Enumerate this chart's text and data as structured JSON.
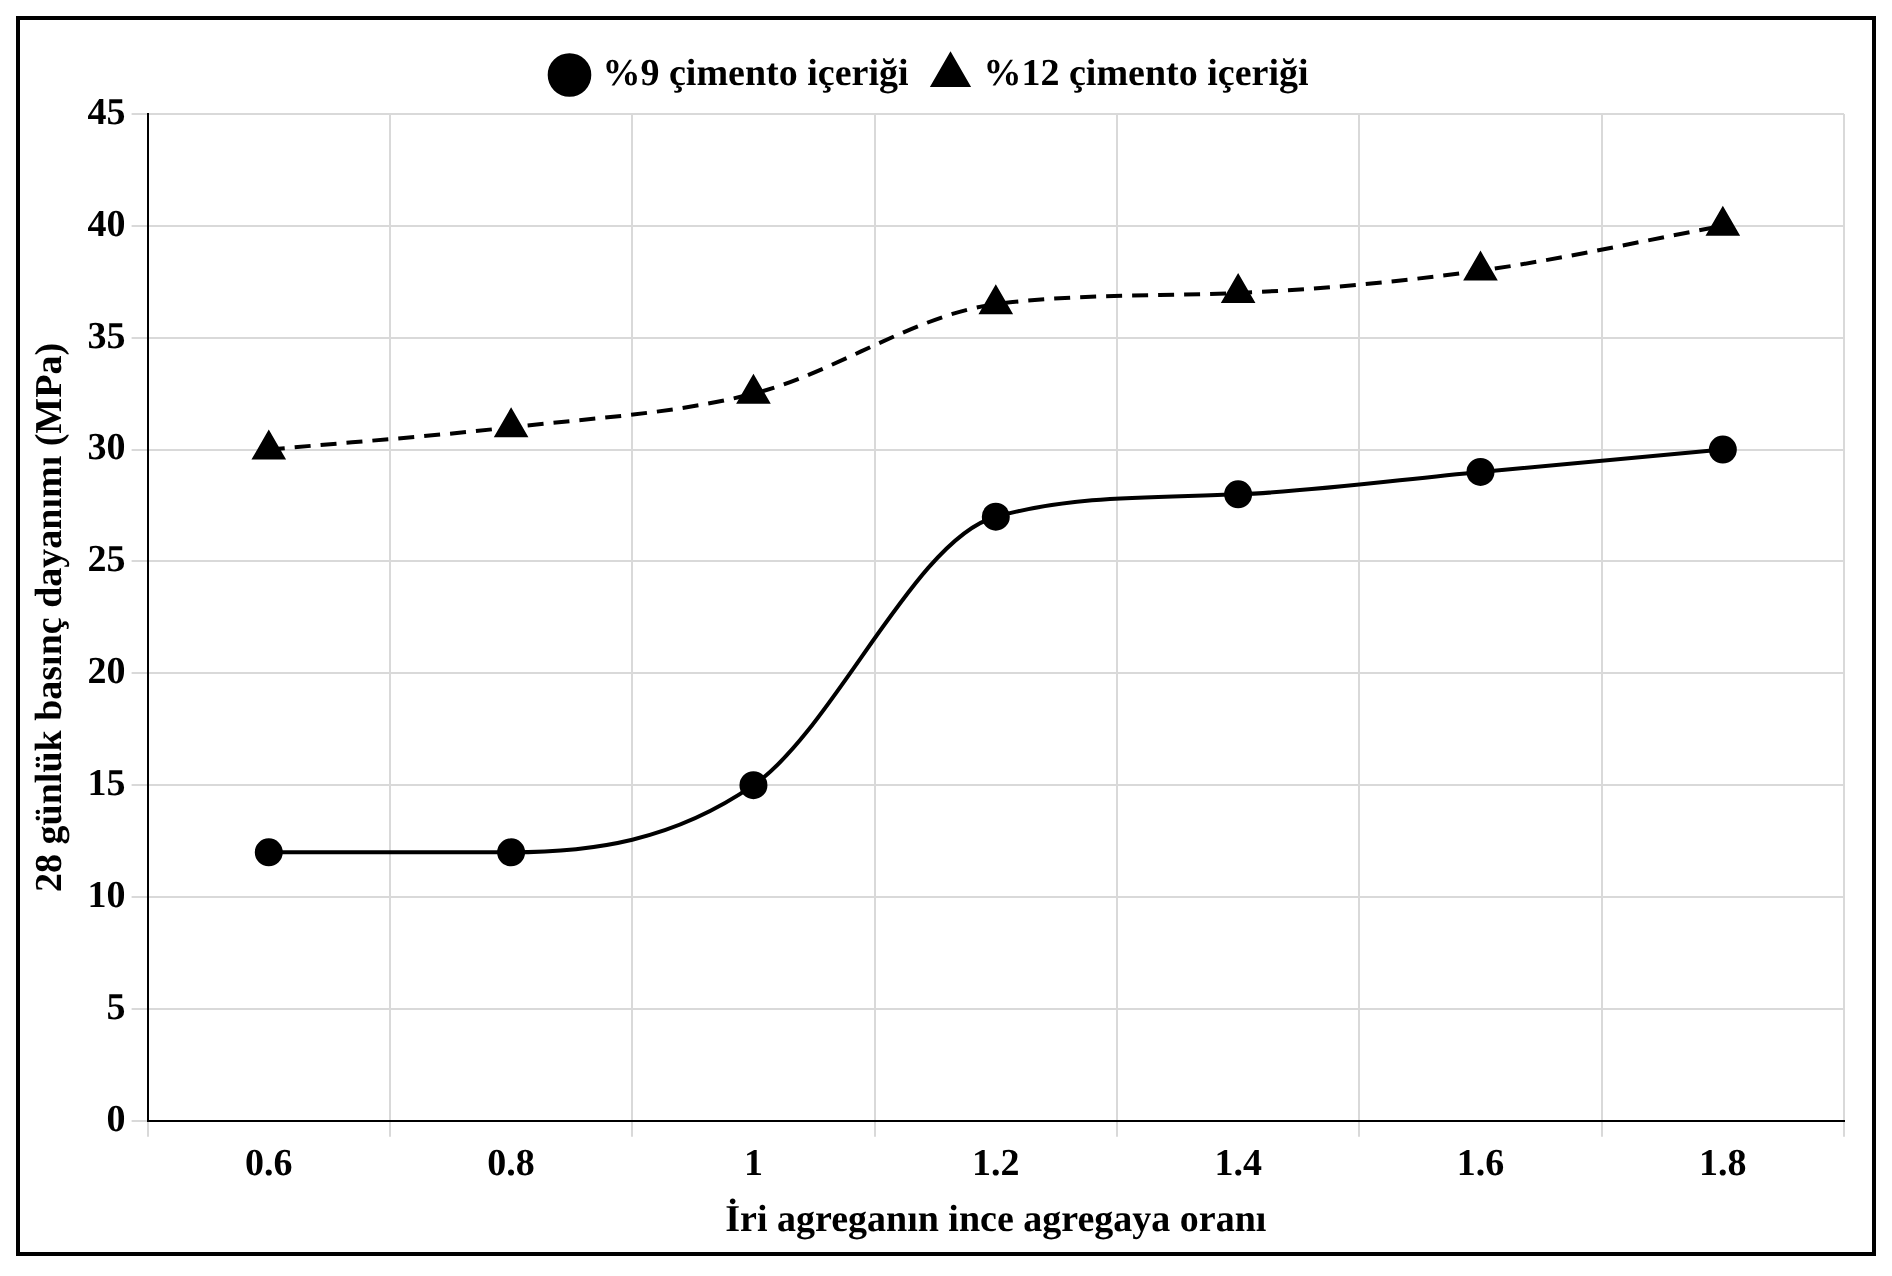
{
  "chart_data": {
    "type": "line",
    "xlabel": "İri agreganın ince agregaya oranı",
    "ylabel": "28 günlük basınç dayanımı (MPa)",
    "categories": [
      "0.6",
      "0.8",
      "1",
      "1.2",
      "1.4",
      "1.6",
      "1.8"
    ],
    "series": [
      {
        "name": "%9 çimento içeriği",
        "color": "#000000",
        "marker": "circle",
        "line_style": "solid",
        "values": [
          12,
          12,
          15,
          27,
          28,
          29,
          30
        ]
      },
      {
        "name": "%12 çimento içeriği",
        "color": "#000000",
        "marker": "triangle",
        "line_style": "dashed",
        "values": [
          30,
          31,
          32.5,
          36.5,
          37,
          38,
          40
        ]
      }
    ],
    "ylim": [
      0,
      45
    ],
    "yticks": [
      0,
      5,
      10,
      15,
      20,
      25,
      30,
      35,
      40,
      45
    ],
    "grid": true,
    "legend": "top"
  }
}
